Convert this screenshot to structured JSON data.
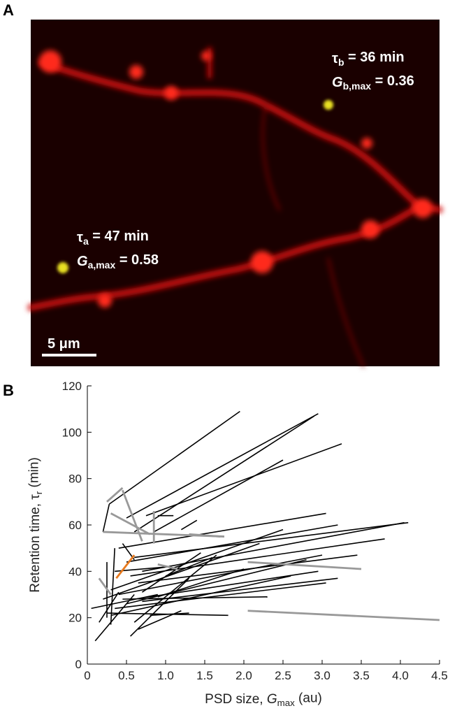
{
  "panels": {
    "a": {
      "label": "A",
      "scale_bar": "5 μm",
      "annotations": [
        [
          {
            "text": "τ"
          },
          {
            "text": "b",
            "sub": true
          },
          {
            "text": " = 36 min"
          }
        ],
        [
          {
            "text": "G",
            "italic": true
          },
          {
            "text": "b,max",
            "sub": true
          },
          {
            "text": " = 0.36"
          }
        ],
        [
          {
            "text": "τ"
          },
          {
            "text": "a",
            "sub": true
          },
          {
            "text": " = 47 min"
          }
        ],
        [
          {
            "text": "G",
            "italic": true
          },
          {
            "text": "a,max",
            "sub": true
          },
          {
            "text": " = 0.58"
          }
        ]
      ]
    },
    "b": {
      "label": "B"
    }
  },
  "chart_data": {
    "type": "segments",
    "x_label": [
      {
        "text": "PSD size, "
      },
      {
        "text": "G",
        "italic": true
      },
      {
        "text": "max",
        "sub": true
      },
      {
        "text": " (au)"
      }
    ],
    "y_label": [
      {
        "text": "Retention time, τ"
      },
      {
        "text": "r",
        "sub": true
      },
      {
        "text": " (min)"
      }
    ],
    "xlim": [
      0,
      4.5
    ],
    "ylim": [
      0,
      120
    ],
    "xticks": [
      0,
      0.5,
      {
        "value": 1,
        "label": "1.0"
      },
      1.5,
      {
        "value": 2,
        "label": "2.0"
      },
      2.5,
      {
        "value": 3,
        "label": "3.0"
      },
      3.5,
      {
        "value": 4,
        "label": "4.0"
      },
      4.5
    ],
    "yticks": [
      0,
      20,
      40,
      60,
      80,
      100,
      120
    ],
    "series": [
      {
        "color": "#000000",
        "lines": [
          {
            "x": [
              0.28,
              1.95
            ],
            "y": [
              69,
              109
            ]
          },
          {
            "x": [
              0.5,
              2.95
            ],
            "y": [
              63,
              108
            ]
          },
          {
            "x": [
              0.6,
              2.9
            ],
            "y": [
              57,
              107
            ]
          },
          {
            "x": [
              0.75,
              3.25
            ],
            "y": [
              64,
              95
            ]
          },
          {
            "x": [
              0.85,
              2.5
            ],
            "y": [
              57,
              88
            ]
          },
          {
            "x": [
              0.2,
              0.28
            ],
            "y": [
              57,
              69
            ]
          },
          {
            "x": [
              0.9,
              1.1
            ],
            "y": [
              64,
              64
            ]
          },
          {
            "x": [
              0.4,
              3.05
            ],
            "y": [
              50,
              65
            ]
          },
          {
            "x": [
              0.5,
              3.2
            ],
            "y": [
              44,
              60
            ]
          },
          {
            "x": [
              0.6,
              4.1
            ],
            "y": [
              46,
              61
            ]
          },
          {
            "x": [
              0.7,
              4.05
            ],
            "y": [
              40,
              61
            ]
          },
          {
            "x": [
              0.55,
              3.8
            ],
            "y": [
              38,
              54
            ]
          },
          {
            "x": [
              0.65,
              3.45
            ],
            "y": [
              35,
              47
            ]
          },
          {
            "x": [
              0.3,
              2.5
            ],
            "y": [
              32,
              58
            ]
          },
          {
            "x": [
              0.2,
              2.2
            ],
            "y": [
              28,
              52
            ]
          },
          {
            "x": [
              0.4,
              3.0
            ],
            "y": [
              30,
              47
            ]
          },
          {
            "x": [
              0.5,
              2.8
            ],
            "y": [
              26,
              45
            ]
          },
          {
            "x": [
              0.6,
              2.95
            ],
            "y": [
              28,
              40
            ]
          },
          {
            "x": [
              0.7,
              3.2
            ],
            "y": [
              27,
              37
            ]
          },
          {
            "x": [
              0.35,
              3.05
            ],
            "y": [
              24,
              35
            ]
          },
          {
            "x": [
              0.3,
              2.6
            ],
            "y": [
              21,
              38
            ]
          },
          {
            "x": [
              0.25,
              1.8
            ],
            "y": [
              22,
              21
            ]
          },
          {
            "x": [
              0.45,
              2.3
            ],
            "y": [
              28,
              29
            ]
          },
          {
            "x": [
              0.6,
              1.65
            ],
            "y": [
              18,
              47
            ]
          },
          {
            "x": [
              0.65,
              1.2
            ],
            "y": [
              15,
              23
            ]
          },
          {
            "x": [
              0.55,
              1.3
            ],
            "y": [
              12,
              37
            ]
          },
          {
            "x": [
              0.1,
              0.6
            ],
            "y": [
              10,
              30
            ]
          },
          {
            "x": [
              0.05,
              0.9
            ],
            "y": [
              24,
              30
            ]
          },
          {
            "x": [
              0.3,
              0.35
            ],
            "y": [
              17,
              50
            ]
          },
          {
            "x": [
              0.25,
              0.25
            ],
            "y": [
              20,
              44
            ]
          },
          {
            "x": [
              0.15,
              0.4
            ],
            "y": [
              18,
              31
            ]
          },
          {
            "x": [
              0.8,
              1.3
            ],
            "y": [
              21,
              22
            ]
          },
          {
            "x": [
              0.9,
              2.0
            ],
            "y": [
              29,
              41
            ]
          },
          {
            "x": [
              0.7,
              1.45
            ],
            "y": [
              31,
              48
            ]
          },
          {
            "x": [
              1.0,
              1.6
            ],
            "y": [
              38,
              46
            ]
          },
          {
            "x": [
              0.35,
              1.05
            ],
            "y": [
              40,
              42
            ]
          },
          {
            "x": [
              0.45,
              0.6
            ],
            "y": [
              52,
              45
            ]
          },
          {
            "x": [
              1.2,
              1.4
            ],
            "y": [
              58,
              62
            ]
          }
        ]
      },
      {
        "color": "#999999",
        "lines": [
          {
            "x": [
              0.25,
              0.45
            ],
            "y": [
              70,
              76
            ]
          },
          {
            "x": [
              0.3,
              0.8
            ],
            "y": [
              65,
              56
            ]
          },
          {
            "x": [
              0.45,
              0.7
            ],
            "y": [
              75,
              53
            ]
          },
          {
            "x": [
              0.2,
              1.75
            ],
            "y": [
              57,
              55
            ]
          },
          {
            "x": [
              1.3,
              1.7
            ],
            "y": [
              56,
              55
            ]
          },
          {
            "x": [
              0.85,
              0.85
            ],
            "y": [
              66,
              52
            ]
          },
          {
            "x": [
              2.05,
              3.5
            ],
            "y": [
              44,
              41
            ]
          },
          {
            "x": [
              2.05,
              4.5
            ],
            "y": [
              23,
              19
            ]
          },
          {
            "x": [
              0.15,
              0.3
            ],
            "y": [
              37,
              30
            ]
          },
          {
            "x": [
              0.9,
              1.15
            ],
            "y": [
              43,
              41
            ]
          }
        ]
      },
      {
        "color": "#e87a1e",
        "lines": [
          {
            "x": [
              0.37,
              0.6
            ],
            "y": [
              37,
              47
            ]
          }
        ]
      }
    ]
  }
}
